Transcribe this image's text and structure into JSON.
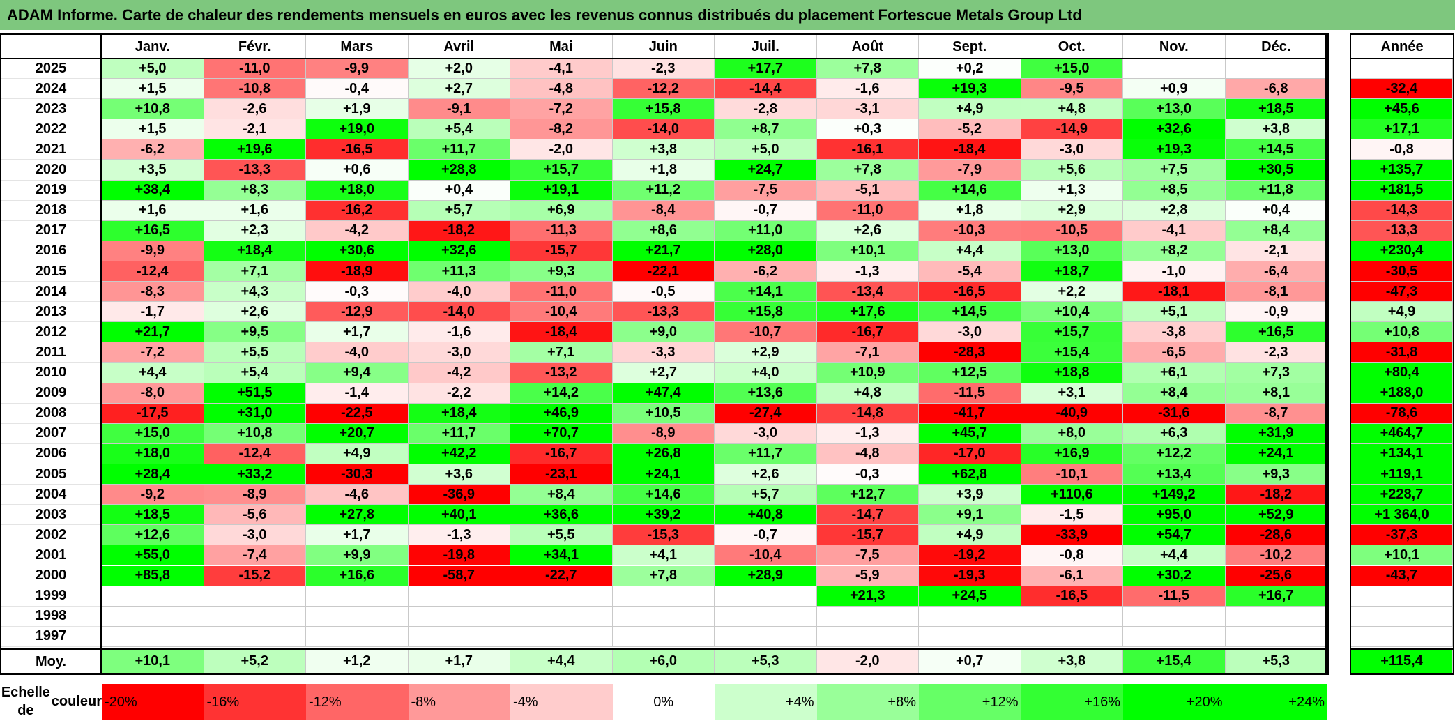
{
  "title": "ADAM Informe. Carte de chaleur des rendements mensuels en euros avec les revenus connus distribués du placement Fortescue Metals Group Ltd",
  "chart_data": {
    "type": "heatmap",
    "columns": [
      "Janv.",
      "Févr.",
      "Mars",
      "Avril",
      "Mai",
      "Juin",
      "Juil.",
      "Août",
      "Sept.",
      "Oct.",
      "Nov.",
      "Déc."
    ],
    "year_label": "Année",
    "avg_label": "Moy.",
    "rows": [
      {
        "year": "2025",
        "values": [
          "+5,0",
          "-11,0",
          "-9,9",
          "+2,0",
          "-4,1",
          "-2,3",
          "+17,7",
          "+7,8",
          "+0,2",
          "+15,0",
          "",
          ""
        ],
        "annual": ""
      },
      {
        "year": "2024",
        "values": [
          "+1,5",
          "-10,8",
          "-0,4",
          "+2,7",
          "-4,8",
          "-12,2",
          "-14,4",
          "-1,6",
          "+19,3",
          "-9,5",
          "+0,9",
          "-6,8"
        ],
        "annual": "-32,4"
      },
      {
        "year": "2023",
        "values": [
          "+10,8",
          "-2,6",
          "+1,9",
          "-9,1",
          "-7,2",
          "+15,8",
          "-2,8",
          "-3,1",
          "+4,9",
          "+4,8",
          "+13,0",
          "+18,5"
        ],
        "annual": "+45,6"
      },
      {
        "year": "2022",
        "values": [
          "+1,5",
          "-2,1",
          "+19,0",
          "+5,4",
          "-8,2",
          "-14,0",
          "+8,7",
          "+0,3",
          "-5,2",
          "-14,9",
          "+32,6",
          "+3,8"
        ],
        "annual": "+17,1"
      },
      {
        "year": "2021",
        "values": [
          "-6,2",
          "+19,6",
          "-16,5",
          "+11,7",
          "-2,0",
          "+3,8",
          "+5,0",
          "-16,1",
          "-18,4",
          "-3,0",
          "+19,3",
          "+14,5"
        ],
        "annual": "-0,8"
      },
      {
        "year": "2020",
        "values": [
          "+3,5",
          "-13,3",
          "+0,6",
          "+28,8",
          "+15,7",
          "+1,8",
          "+24,7",
          "+7,8",
          "-7,9",
          "+5,6",
          "+7,5",
          "+30,5"
        ],
        "annual": "+135,7"
      },
      {
        "year": "2019",
        "values": [
          "+38,4",
          "+8,3",
          "+18,0",
          "+0,4",
          "+19,1",
          "+11,2",
          "-7,5",
          "-5,1",
          "+14,6",
          "+1,3",
          "+8,5",
          "+11,8"
        ],
        "annual": "+181,5"
      },
      {
        "year": "2018",
        "values": [
          "+1,6",
          "+1,6",
          "-16,2",
          "+5,7",
          "+6,9",
          "-8,4",
          "-0,7",
          "-11,0",
          "+1,8",
          "+2,9",
          "+2,8",
          "+0,4"
        ],
        "annual": "-14,3"
      },
      {
        "year": "2017",
        "values": [
          "+16,5",
          "+2,3",
          "-4,2",
          "-18,2",
          "-11,3",
          "+8,6",
          "+11,0",
          "+2,6",
          "-10,3",
          "-10,5",
          "-4,1",
          "+8,4"
        ],
        "annual": "-13,3"
      },
      {
        "year": "2016",
        "values": [
          "-9,9",
          "+18,4",
          "+30,6",
          "+32,6",
          "-15,7",
          "+21,7",
          "+28,0",
          "+10,1",
          "+4,4",
          "+13,0",
          "+8,2",
          "-2,1"
        ],
        "annual": "+230,4"
      },
      {
        "year": "2015",
        "values": [
          "-12,4",
          "+7,1",
          "-18,9",
          "+11,3",
          "+9,3",
          "-22,1",
          "-6,2",
          "-1,3",
          "-5,4",
          "+18,7",
          "-1,0",
          "-6,4"
        ],
        "annual": "-30,5"
      },
      {
        "year": "2014",
        "values": [
          "-8,3",
          "+4,3",
          "-0,3",
          "-4,0",
          "-11,0",
          "-0,5",
          "+14,1",
          "-13,4",
          "-16,5",
          "+2,2",
          "-18,1",
          "-8,1"
        ],
        "annual": "-47,3"
      },
      {
        "year": "2013",
        "values": [
          "-1,7",
          "+2,6",
          "-12,9",
          "-14,0",
          "-10,4",
          "-13,3",
          "+15,8",
          "+17,6",
          "+14,5",
          "+10,4",
          "+5,1",
          "-0,9"
        ],
        "annual": "+4,9"
      },
      {
        "year": "2012",
        "values": [
          "+21,7",
          "+9,5",
          "+1,7",
          "-1,6",
          "-18,4",
          "+9,0",
          "-10,7",
          "-16,7",
          "-3,0",
          "+15,7",
          "-3,8",
          "+16,5"
        ],
        "annual": "+10,8"
      },
      {
        "year": "2011",
        "values": [
          "-7,2",
          "+5,5",
          "-4,0",
          "-3,0",
          "+7,1",
          "-3,3",
          "+2,9",
          "-7,1",
          "-28,3",
          "+15,4",
          "-6,5",
          "-2,3"
        ],
        "annual": "-31,8"
      },
      {
        "year": "2010",
        "values": [
          "+4,4",
          "+5,4",
          "+9,4",
          "-4,2",
          "-13,2",
          "+2,7",
          "+4,0",
          "+10,9",
          "+12,5",
          "+18,8",
          "+6,1",
          "+7,3"
        ],
        "annual": "+80,4"
      },
      {
        "year": "2009",
        "values": [
          "-8,0",
          "+51,5",
          "-1,4",
          "-2,2",
          "+14,2",
          "+47,4",
          "+13,6",
          "+4,8",
          "-11,5",
          "+3,1",
          "+8,4",
          "+8,1"
        ],
        "annual": "+188,0"
      },
      {
        "year": "2008",
        "values": [
          "-17,5",
          "+31,0",
          "-22,5",
          "+18,4",
          "+46,9",
          "+10,5",
          "-27,4",
          "-14,8",
          "-41,7",
          "-40,9",
          "-31,6",
          "-8,7"
        ],
        "annual": "-78,6"
      },
      {
        "year": "2007",
        "values": [
          "+15,0",
          "+10,8",
          "+20,7",
          "+11,7",
          "+70,7",
          "-8,9",
          "-3,0",
          "-1,3",
          "+45,7",
          "+8,0",
          "+6,3",
          "+31,9"
        ],
        "annual": "+464,7"
      },
      {
        "year": "2006",
        "values": [
          "+18,0",
          "-12,4",
          "+4,9",
          "+42,2",
          "-16,7",
          "+26,8",
          "+11,7",
          "-4,8",
          "-17,0",
          "+16,9",
          "+12,2",
          "+24,1"
        ],
        "annual": "+134,1"
      },
      {
        "year": "2005",
        "values": [
          "+28,4",
          "+33,2",
          "-30,3",
          "+3,6",
          "-23,1",
          "+24,1",
          "+2,6",
          "-0,3",
          "+62,8",
          "-10,1",
          "+13,4",
          "+9,3"
        ],
        "annual": "+119,1"
      },
      {
        "year": "2004",
        "values": [
          "-9,2",
          "-8,9",
          "-4,6",
          "-36,9",
          "+8,4",
          "+14,6",
          "+5,7",
          "+12,7",
          "+3,9",
          "+110,6",
          "+149,2",
          "-18,2"
        ],
        "annual": "+228,7"
      },
      {
        "year": "2003",
        "values": [
          "+18,5",
          "-5,6",
          "+27,8",
          "+40,1",
          "+36,6",
          "+39,2",
          "+40,8",
          "-14,7",
          "+9,1",
          "-1,5",
          "+95,0",
          "+52,9"
        ],
        "annual": "+1 364,0"
      },
      {
        "year": "2002",
        "values": [
          "+12,6",
          "-3,0",
          "+1,7",
          "-1,3",
          "+5,5",
          "-15,3",
          "-0,7",
          "-15,7",
          "+4,9",
          "-33,9",
          "+54,7",
          "-28,6"
        ],
        "annual": "-37,3"
      },
      {
        "year": "2001",
        "values": [
          "+55,0",
          "-7,4",
          "+9,9",
          "-19,8",
          "+34,1",
          "+4,1",
          "-10,4",
          "-7,5",
          "-19,2",
          "-0,8",
          "+4,4",
          "-10,2"
        ],
        "annual": "+10,1"
      },
      {
        "year": "2000",
        "values": [
          "+85,8",
          "-15,2",
          "+16,6",
          "-58,7",
          "-22,7",
          "+7,8",
          "+28,9",
          "-5,9",
          "-19,3",
          "-6,1",
          "+30,2",
          "-25,6"
        ],
        "annual": "-43,7"
      },
      {
        "year": "1999",
        "values": [
          "",
          "",
          "",
          "",
          "",
          "",
          "",
          "+21,3",
          "+24,5",
          "-16,5",
          "-11,5",
          "+16,7"
        ],
        "annual": ""
      },
      {
        "year": "1998",
        "values": [
          "",
          "",
          "",
          "",
          "",
          "",
          "",
          "",
          "",
          "",
          "",
          ""
        ],
        "annual": ""
      },
      {
        "year": "1997",
        "values": [
          "",
          "",
          "",
          "",
          "",
          "",
          "",
          "",
          "",
          "",
          "",
          ""
        ],
        "annual": ""
      }
    ],
    "average": {
      "values": [
        "+10,1",
        "+5,2",
        "+1,2",
        "+1,7",
        "+4,4",
        "+6,0",
        "+5,3",
        "-2,0",
        "+0,7",
        "+3,8",
        "+15,4",
        "+5,3"
      ],
      "annual": "+115,4"
    },
    "scale": {
      "label_line1": "Echelle de",
      "label_line2": "couleur",
      "items": [
        {
          "label": "-20%",
          "value": -20,
          "color": "#ff0000"
        },
        {
          "label": "-16%",
          "value": -16,
          "color": "#ff3333"
        },
        {
          "label": "-12%",
          "value": -12,
          "color": "#ff6666"
        },
        {
          "label": "-8%",
          "value": -8,
          "color": "#ff9999"
        },
        {
          "label": "-4%",
          "value": -4,
          "color": "#ffcccc"
        },
        {
          "label": "0%",
          "value": 0,
          "color": "#ffffff"
        },
        {
          "label": "+4%",
          "value": 4,
          "color": "#ccffcc"
        },
        {
          "label": "+8%",
          "value": 8,
          "color": "#99ff99"
        },
        {
          "label": "+12%",
          "value": 12,
          "color": "#66ff66"
        },
        {
          "label": "+16%",
          "value": 16,
          "color": "#33ff33"
        },
        {
          "label": "+20%",
          "value": 20,
          "color": "#00ff00"
        },
        {
          "label": "+24%",
          "value": 24,
          "color": "#00ff00"
        }
      ]
    }
  }
}
